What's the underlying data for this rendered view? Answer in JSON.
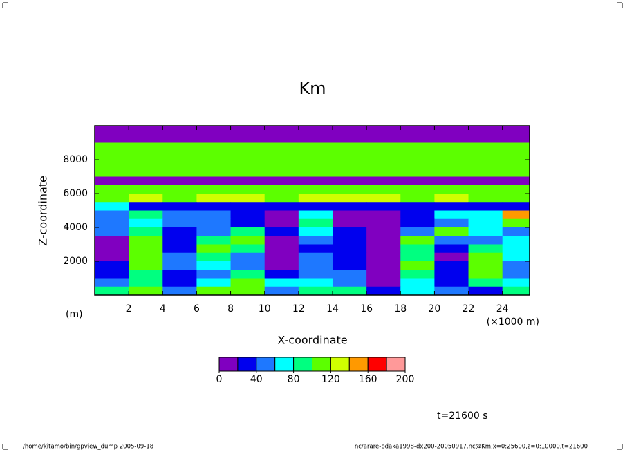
{
  "chart_data": {
    "type": "contour",
    "title": "Km",
    "xlabel": "X-coordinate",
    "ylabel": "Z-coordinate",
    "xunit": "(×1000 m)",
    "yunit": "(m)",
    "xlim": [
      0,
      25.6
    ],
    "ylim": [
      0,
      10000
    ],
    "xticks": [
      2,
      4,
      6,
      8,
      10,
      12,
      14,
      16,
      18,
      20,
      22,
      24
    ],
    "yticks": [
      2000,
      4000,
      6000,
      8000
    ],
    "x": [
      1,
      3,
      5,
      7,
      9,
      11,
      13,
      15,
      17,
      19,
      21,
      23,
      25
    ],
    "y": [
      9750,
      9250,
      8750,
      8250,
      7750,
      7250,
      6750,
      6250,
      5750,
      5250,
      4750,
      4250,
      3750,
      3250,
      2750,
      2250,
      1750,
      1250,
      750,
      250
    ],
    "z": [
      [
        10,
        10,
        10,
        10,
        10,
        10,
        10,
        10,
        10,
        10,
        10,
        10,
        10
      ],
      [
        10,
        10,
        10,
        10,
        10,
        10,
        10,
        10,
        10,
        10,
        10,
        10,
        10
      ],
      [
        110,
        110,
        110,
        110,
        110,
        110,
        110,
        110,
        110,
        110,
        110,
        110,
        110
      ],
      [
        100,
        100,
        100,
        100,
        100,
        100,
        100,
        100,
        100,
        100,
        100,
        100,
        100
      ],
      [
        110,
        110,
        110,
        110,
        110,
        110,
        110,
        110,
        110,
        110,
        110,
        110,
        110
      ],
      [
        100,
        110,
        100,
        100,
        100,
        100,
        100,
        100,
        100,
        100,
        100,
        100,
        100
      ],
      [
        10,
        10,
        10,
        10,
        10,
        10,
        10,
        10,
        10,
        10,
        10,
        10,
        10
      ],
      [
        110,
        110,
        110,
        110,
        110,
        110,
        110,
        110,
        110,
        110,
        110,
        110,
        110
      ],
      [
        110,
        125,
        110,
        125,
        125,
        110,
        125,
        125,
        125,
        110,
        125,
        110,
        110
      ],
      [
        70,
        30,
        30,
        30,
        30,
        30,
        30,
        30,
        30,
        30,
        30,
        30,
        30
      ],
      [
        50,
        90,
        50,
        50,
        30,
        10,
        70,
        10,
        10,
        30,
        70,
        70,
        150
      ],
      [
        50,
        70,
        50,
        50,
        30,
        10,
        90,
        10,
        10,
        30,
        50,
        70,
        110
      ],
      [
        50,
        90,
        30,
        50,
        90,
        30,
        70,
        30,
        10,
        50,
        110,
        70,
        50
      ],
      [
        10,
        110,
        30,
        90,
        110,
        10,
        50,
        30,
        10,
        110,
        50,
        50,
        70
      ],
      [
        10,
        110,
        30,
        110,
        90,
        10,
        30,
        30,
        10,
        90,
        30,
        90,
        70
      ],
      [
        10,
        110,
        50,
        90,
        50,
        10,
        50,
        30,
        10,
        90,
        10,
        110,
        70
      ],
      [
        30,
        110,
        50,
        70,
        50,
        10,
        50,
        30,
        10,
        110,
        30,
        110,
        50
      ],
      [
        30,
        90,
        30,
        50,
        90,
        30,
        50,
        50,
        10,
        90,
        30,
        110,
        50
      ],
      [
        50,
        90,
        30,
        70,
        110,
        70,
        70,
        50,
        10,
        70,
        30,
        90,
        70
      ],
      [
        90,
        110,
        50,
        110,
        110,
        50,
        90,
        90,
        30,
        70,
        50,
        30,
        90
      ]
    ],
    "levels": [
      0,
      20,
      40,
      60,
      80,
      100,
      120,
      140,
      160,
      180,
      200
    ],
    "colors": [
      "#8000c0",
      "#0000ee",
      "#1e78ff",
      "#00ffff",
      "#00ff80",
      "#5cff00",
      "#d0ff00",
      "#ff9900",
      "#ff0000",
      "#ff9999"
    ],
    "colorbar_ticks": [
      0,
      40,
      80,
      120,
      160,
      200
    ],
    "time_label": "t=21600 s",
    "footer_left": "/home/kitamo/bin/gpview_dump  2005-09-18",
    "footer_right": "nc/arare-odaka1998-dx200-20050917.nc@Km,x=0:25600,z=0:10000,t=21600"
  }
}
